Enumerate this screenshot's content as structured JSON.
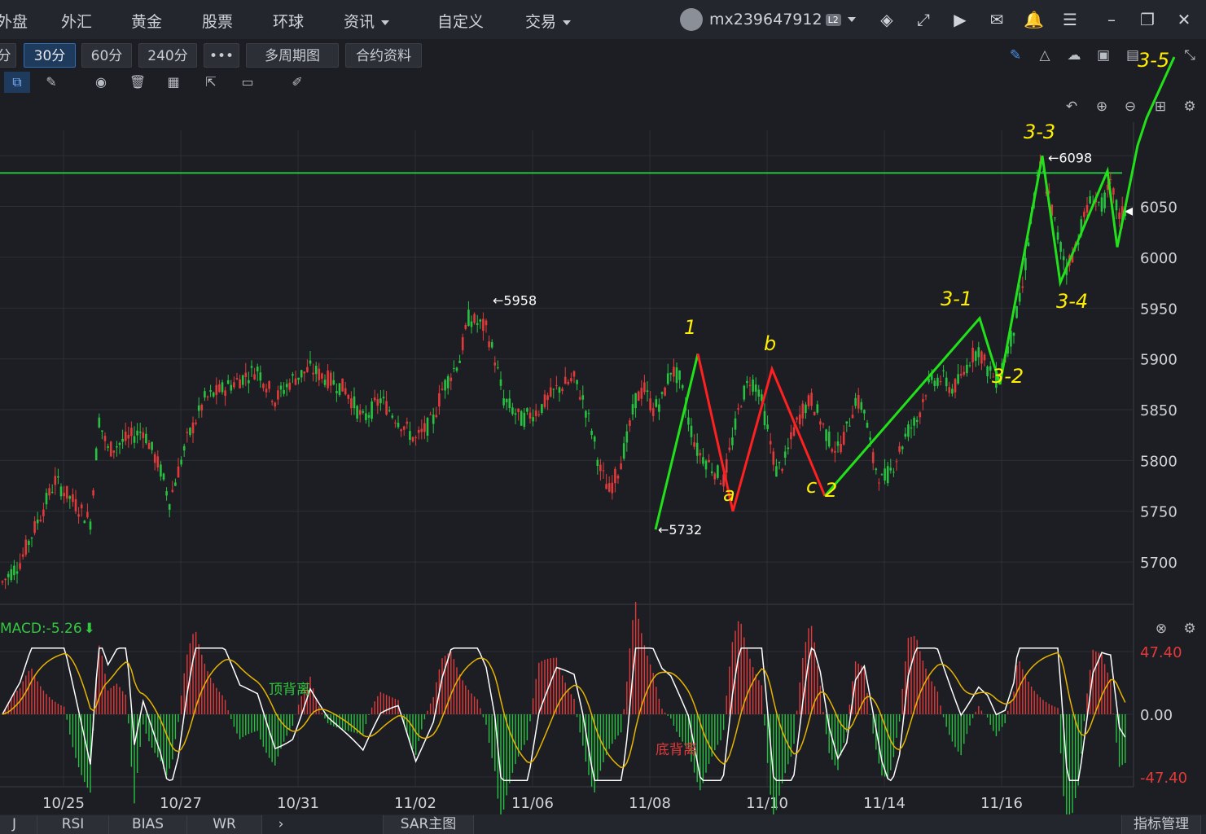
{
  "topbar": {
    "nav": [
      "外盘",
      "外汇",
      "黄金",
      "股票",
      "环球",
      "资讯",
      "自定义",
      "交易"
    ],
    "user": "mx239647912",
    "badge": "L2"
  },
  "toolbar": {
    "periods": [
      "分",
      "30分",
      "60分",
      "240分",
      "•••",
      "多周期图",
      "合约资料"
    ],
    "active_period": "30分"
  },
  "icons": [
    "layers-icon",
    "expand-icon",
    "video-icon",
    "mail-icon",
    "bell-icon",
    "menu-icon",
    "minimize-icon",
    "restore-icon",
    "close-icon",
    "pencil-icon",
    "eye-icon",
    "trash-icon",
    "grid-icon",
    "share-icon",
    "comment-icon",
    "ruler-icon",
    "undo-icon",
    "zoom-in-icon",
    "zoom-out-icon",
    "settings-icon"
  ],
  "bottom_tabs": [
    "J",
    "RSI",
    "BIAS",
    "WR",
    "SAR主图",
    "指标管理"
  ],
  "colors": {
    "up": "#e23a3a",
    "down": "#27c240",
    "dif": "#ffffff",
    "dea": "#e6b400",
    "resistance": "#27c240",
    "annotation_wave": "#22e01a",
    "annotation_red": "#ff2020",
    "annotation_text": "#ffee00"
  },
  "chart_data": [
    {
      "type": "candlestick",
      "x_tick_labels": [
        "10/25",
        "10/27",
        "10/31",
        "11/02",
        "11/06",
        "11/08",
        "11/10",
        "11/14",
        "11/16"
      ],
      "y_tick_labels": [
        "5700",
        "5750",
        "5800",
        "5850",
        "5900",
        "5950",
        "6000",
        "6050"
      ],
      "ylim": [
        5660,
        6125
      ],
      "grid": true,
      "resistance_level": 6083,
      "last_price": 6045,
      "annotations": {
        "high_5958": "5958",
        "low_5732": "5732",
        "high_6098": "6098"
      },
      "price_path": [
        [
          0,
          5680
        ],
        [
          6,
          5700
        ],
        [
          12,
          5740
        ],
        [
          18,
          5780
        ],
        [
          24,
          5760
        ],
        [
          30,
          5740
        ],
        [
          33,
          5840
        ],
        [
          36,
          5810
        ],
        [
          42,
          5820
        ],
        [
          48,
          5830
        ],
        [
          54,
          5790
        ],
        [
          57,
          5760
        ],
        [
          63,
          5820
        ],
        [
          69,
          5860
        ],
        [
          75,
          5870
        ],
        [
          81,
          5880
        ],
        [
          87,
          5890
        ],
        [
          93,
          5860
        ],
        [
          99,
          5880
        ],
        [
          105,
          5890
        ],
        [
          111,
          5880
        ],
        [
          117,
          5870
        ],
        [
          123,
          5840
        ],
        [
          129,
          5860
        ],
        [
          135,
          5840
        ],
        [
          141,
          5820
        ],
        [
          147,
          5840
        ],
        [
          150,
          5870
        ],
        [
          156,
          5900
        ],
        [
          159,
          5940
        ],
        [
          165,
          5930
        ],
        [
          168,
          5900
        ],
        [
          171,
          5860
        ],
        [
          177,
          5840
        ],
        [
          183,
          5850
        ],
        [
          189,
          5870
        ],
        [
          195,
          5880
        ],
        [
          198,
          5860
        ],
        [
          201,
          5830
        ],
        [
          204,
          5790
        ],
        [
          207,
          5770
        ],
        [
          210,
          5790
        ],
        [
          213,
          5820
        ],
        [
          216,
          5860
        ],
        [
          219,
          5870
        ],
        [
          222,
          5850
        ],
        [
          225,
          5860
        ],
        [
          228,
          5890
        ],
        [
          231,
          5880
        ],
        [
          234,
          5840
        ],
        [
          237,
          5810
        ],
        [
          240,
          5800
        ],
        [
          243,
          5790
        ],
        [
          246,
          5780
        ],
        [
          249,
          5820
        ],
        [
          252,
          5860
        ],
        [
          255,
          5880
        ],
        [
          258,
          5870
        ],
        [
          261,
          5830
        ],
        [
          264,
          5790
        ],
        [
          267,
          5800
        ],
        [
          270,
          5830
        ],
        [
          273,
          5850
        ],
        [
          276,
          5860
        ],
        [
          279,
          5840
        ],
        [
          282,
          5820
        ],
        [
          285,
          5810
        ],
        [
          288,
          5830
        ],
        [
          291,
          5860
        ],
        [
          294,
          5850
        ],
        [
          297,
          5800
        ],
        [
          300,
          5780
        ],
        [
          303,
          5790
        ],
        [
          306,
          5810
        ],
        [
          309,
          5830
        ],
        [
          312,
          5840
        ],
        [
          315,
          5870
        ],
        [
          318,
          5880
        ],
        [
          321,
          5880
        ],
        [
          324,
          5870
        ],
        [
          327,
          5880
        ],
        [
          330,
          5900
        ],
        [
          333,
          5910
        ],
        [
          336,
          5890
        ],
        [
          339,
          5880
        ],
        [
          342,
          5900
        ],
        [
          345,
          5930
        ],
        [
          348,
          5970
        ],
        [
          351,
          6040
        ],
        [
          354,
          6090
        ],
        [
          357,
          6060
        ],
        [
          360,
          6020
        ],
        [
          363,
          5990
        ],
        [
          366,
          6010
        ],
        [
          369,
          6040
        ],
        [
          372,
          6060
        ],
        [
          375,
          6050
        ],
        [
          378,
          6070
        ],
        [
          381,
          6040
        ],
        [
          383,
          6045
        ]
      ]
    },
    {
      "type": "macd",
      "title": "MACD:-5.26",
      "y_tick_labels": [
        "47.40",
        "0.00",
        "-47.40"
      ],
      "ylim": [
        -60,
        60
      ],
      "labels": {
        "top_divergence": "顶背离",
        "bottom_divergence": "底背离"
      }
    }
  ],
  "hand_annotations": [
    "1",
    "a",
    "b",
    "c",
    "2",
    "3-1",
    "3-2",
    "3-3",
    "3-4",
    "3-5"
  ]
}
